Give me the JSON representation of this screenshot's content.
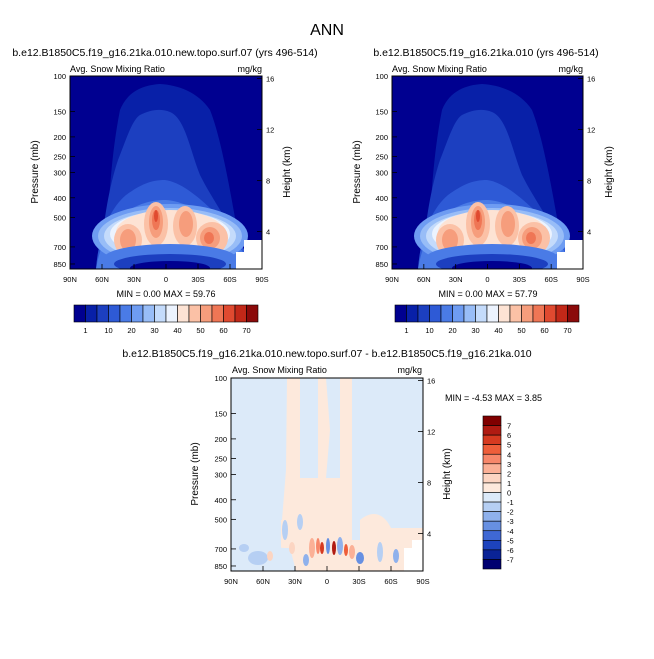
{
  "page_title": "ANN",
  "chart_data": [
    {
      "type": "heatmap",
      "title": "b.e12.B1850C5.f19_g16.21ka.010.new.topo.surf.07 (yrs 496-514)",
      "subtitle_left": "Avg. Snow Mixing Ratio",
      "subtitle_right": "mg/kg",
      "xlabel": "",
      "ylabel": "Pressure (mb)",
      "ylabel_right": "Height (km)",
      "xticks": [
        "90N",
        "60N",
        "30N",
        "0",
        "30S",
        "60S",
        "90S"
      ],
      "yticks_left": [
        "100",
        "150",
        "200",
        "250",
        "300",
        "400",
        "500",
        "700",
        "850"
      ],
      "yticks_right": [
        "16",
        "12",
        "8",
        "4"
      ],
      "stats_label": "MIN =   0.00  MAX =  59.76",
      "min": 0.0,
      "max": 59.76,
      "colorbar_labels": [
        "1",
        "10",
        "20",
        "30",
        "40",
        "50",
        "60",
        "70"
      ]
    },
    {
      "type": "heatmap",
      "title": "b.e12.B1850C5.f19_g16.21ka.010 (yrs 496-514)",
      "subtitle_left": "Avg. Snow Mixing Ratio",
      "subtitle_right": "mg/kg",
      "xlabel": "",
      "ylabel": "Pressure (mb)",
      "ylabel_right": "Height (km)",
      "xticks": [
        "90N",
        "60N",
        "30N",
        "0",
        "30S",
        "60S",
        "90S"
      ],
      "yticks_left": [
        "100",
        "150",
        "200",
        "250",
        "300",
        "400",
        "500",
        "700",
        "850"
      ],
      "yticks_right": [
        "16",
        "12",
        "8",
        "4"
      ],
      "stats_label": "MIN =   0.00  MAX =  57.79",
      "min": 0.0,
      "max": 57.79,
      "colorbar_labels": [
        "1",
        "10",
        "20",
        "30",
        "40",
        "50",
        "60",
        "70"
      ]
    },
    {
      "type": "heatmap",
      "title": "b.e12.B1850C5.f19_g16.21ka.010.new.topo.surf.07 - b.e12.B1850C5.f19_g16.21ka.010",
      "subtitle_left": "Avg. Snow Mixing Ratio",
      "subtitle_right": "mg/kg",
      "xlabel": "",
      "ylabel": "Pressure (mb)",
      "ylabel_right": "Height (km)",
      "xticks": [
        "90N",
        "60N",
        "30N",
        "0",
        "30S",
        "60S",
        "90S"
      ],
      "yticks_left": [
        "100",
        "150",
        "200",
        "250",
        "300",
        "400",
        "500",
        "700",
        "850"
      ],
      "yticks_right": [
        "16",
        "12",
        "8",
        "4"
      ],
      "stats_label": "MIN =  -4.53  MAX =   3.85",
      "min": -4.53,
      "max": 3.85,
      "colorbar_labels": [
        "7",
        "6",
        "5",
        "4",
        "3",
        "2",
        "1",
        "0",
        "-1",
        "-2",
        "-3",
        "-4",
        "-5",
        "-6",
        "-7"
      ]
    }
  ],
  "colors": {
    "seq": [
      "#000090",
      "#0820a8",
      "#1c3fc0",
      "#2e5ad6",
      "#4a7be6",
      "#6e9cf2",
      "#98bdf7",
      "#c4dbfb",
      "#ecf3fe",
      "#fde3d4",
      "#fbc1a6",
      "#f69d7c",
      "#ef7655",
      "#e04a30",
      "#c22818",
      "#8b0a0a"
    ],
    "diff": [
      "#800000",
      "#b01b12",
      "#d63a20",
      "#ee5e3a",
      "#f7876a",
      "#fbb096",
      "#fcd5c2",
      "#fde9dc",
      "#dceaf9",
      "#b6cff3",
      "#8fb1ec",
      "#6790e2",
      "#3f68d4",
      "#1d43bd",
      "#0a2396",
      "#000070"
    ]
  }
}
